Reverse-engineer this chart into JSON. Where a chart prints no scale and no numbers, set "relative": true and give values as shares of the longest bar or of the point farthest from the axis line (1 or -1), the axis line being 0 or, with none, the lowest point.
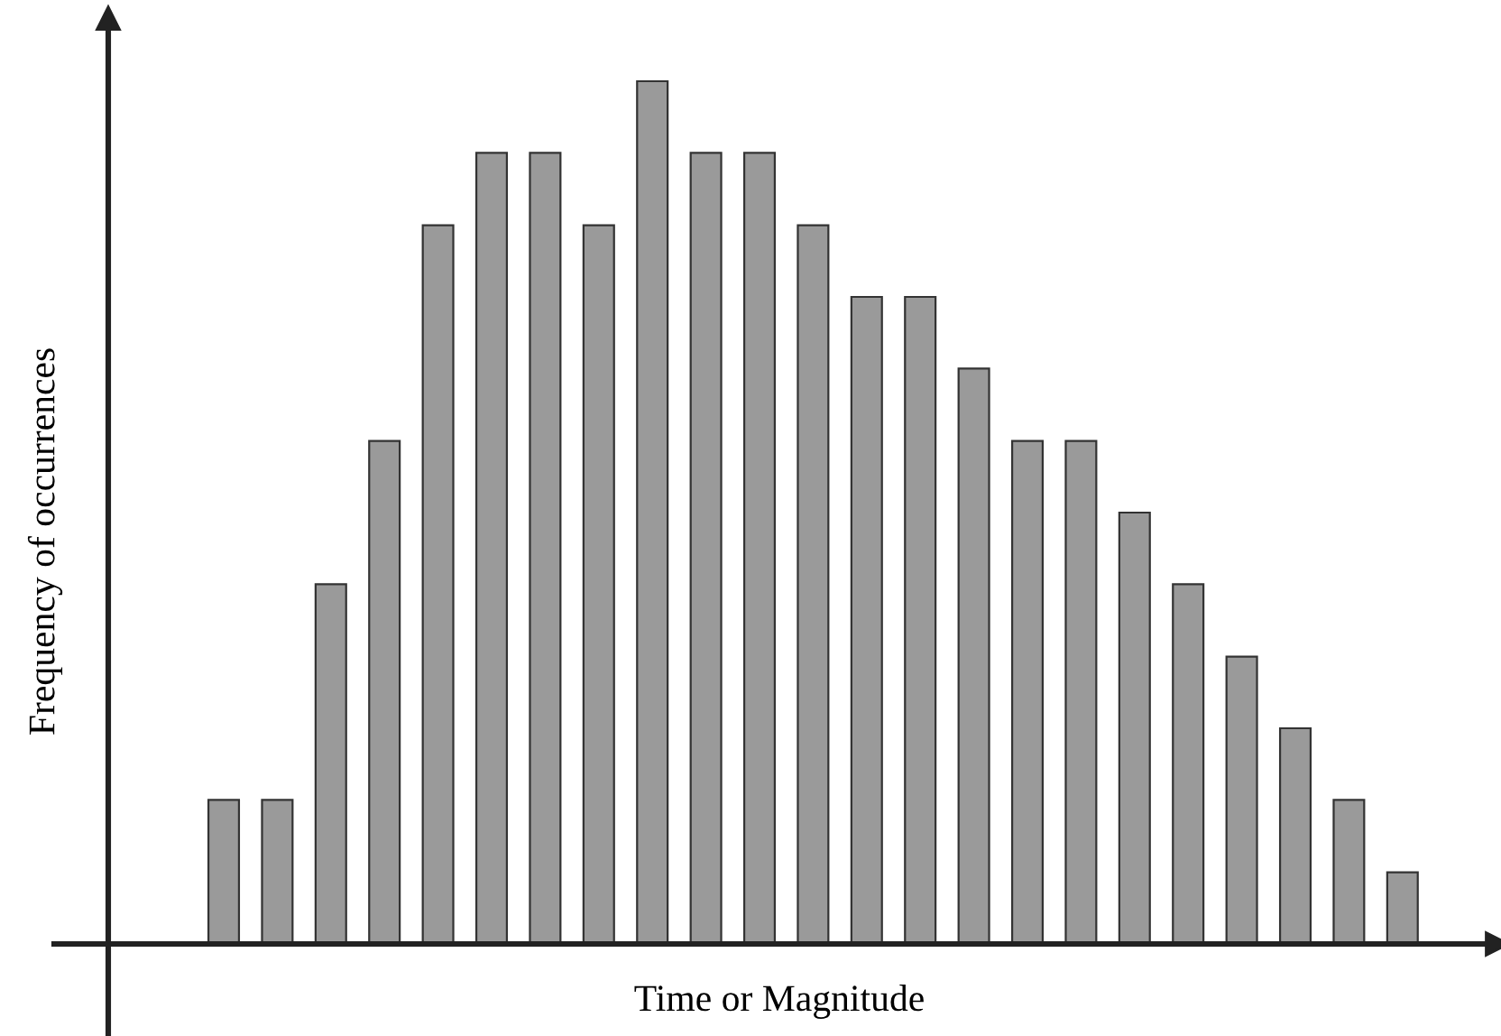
{
  "chart_data": {
    "type": "bar",
    "relative": true,
    "xlabel": "Time or Magnitude",
    "ylabel": "Frequency of occurrences",
    "categories": [
      null,
      null,
      null,
      null,
      null,
      null,
      null,
      null,
      null,
      null,
      null,
      null,
      null,
      null,
      null,
      null,
      null,
      null,
      null,
      null,
      null,
      null,
      null
    ],
    "values": [
      0.167,
      0.167,
      0.417,
      0.583,
      0.833,
      0.917,
      0.917,
      0.833,
      1,
      0.917,
      0.917,
      0.833,
      0.75,
      0.75,
      0.667,
      0.583,
      0.583,
      0.5,
      0.417,
      0.333,
      0.25,
      0.167,
      0.083
    ],
    "color": "#9a9a9a",
    "grid": false,
    "legend": false
  }
}
